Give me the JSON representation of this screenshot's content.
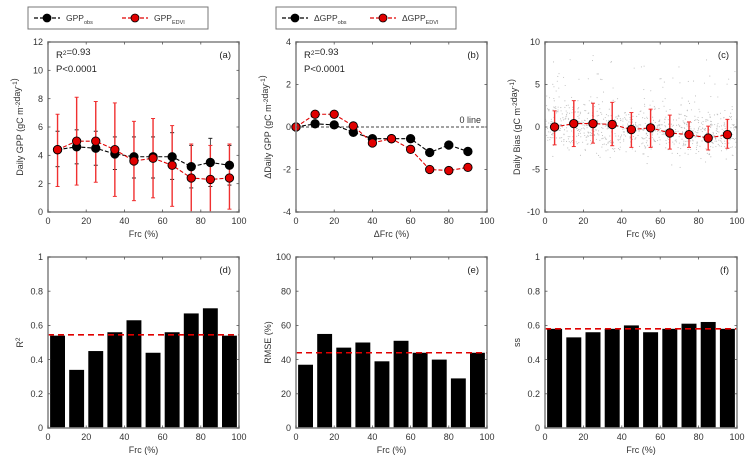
{
  "figure": {
    "colors": {
      "obs": "#000000",
      "model": "#e00000",
      "errorbar": "#f03030",
      "axis": "#888888",
      "scatter": "#bdbdbd",
      "refline_model": "#e00000",
      "zero_line": "#444444"
    }
  },
  "chart_data": [
    {
      "panel": "a",
      "type": "line",
      "panel_label": "(a)",
      "legend": {
        "placement": "top",
        "entries": [
          {
            "name": "GPP",
            "sub": "obs",
            "color": "#000000"
          },
          {
            "name": "GPP",
            "sub": "EDVI",
            "color": "#e00000"
          }
        ]
      },
      "annotations": [
        "R²=0.93",
        "P<0.0001"
      ],
      "xlabel": "Frc (%)",
      "ylabel": "Daily GPP (gC m⁻²day⁻¹)",
      "xlim": [
        0,
        100
      ],
      "ylim": [
        0,
        12
      ],
      "xticks": [
        0,
        20,
        40,
        60,
        80,
        100
      ],
      "yticks": [
        0,
        2,
        4,
        6,
        8,
        10,
        12
      ],
      "x": [
        5,
        15,
        25,
        35,
        45,
        55,
        65,
        75,
        85,
        95
      ],
      "series": [
        {
          "name": "GPP obs",
          "values": [
            4.4,
            4.6,
            4.5,
            4.1,
            3.9,
            3.9,
            3.9,
            3.2,
            3.5,
            3.3
          ],
          "err_low": [
            3.2,
            3.4,
            3.3,
            3.0,
            2.4,
            2.4,
            2.3,
            1.7,
            1.8,
            1.9
          ],
          "err_high": [
            5.7,
            5.8,
            5.7,
            5.3,
            5.3,
            5.3,
            5.6,
            4.7,
            5.2,
            4.7
          ]
        },
        {
          "name": "GPP EDVI",
          "values": [
            4.4,
            5.0,
            5.0,
            4.4,
            3.6,
            3.8,
            3.3,
            2.4,
            2.3,
            2.4
          ],
          "err_low": [
            1.8,
            1.9,
            2.1,
            1.1,
            0.8,
            1.0,
            0.4,
            0.0,
            0.0,
            0.2
          ],
          "err_high": [
            6.9,
            8.1,
            7.8,
            7.7,
            6.4,
            6.6,
            6.1,
            4.8,
            4.7,
            4.8
          ]
        }
      ]
    },
    {
      "panel": "b",
      "type": "line",
      "panel_label": "(b)",
      "legend": {
        "placement": "top",
        "entries": [
          {
            "name": "ΔGPP",
            "sub": "obs",
            "color": "#000000"
          },
          {
            "name": "ΔGPP",
            "sub": "EDVI",
            "color": "#e00000"
          }
        ]
      },
      "annotations": [
        "R²=0.93",
        "P<0.0001"
      ],
      "reference_line": {
        "y": 0,
        "label": "0 line",
        "style": "dashed"
      },
      "xlabel": "ΔFrc (%)",
      "ylabel": "ΔDaily GPP (gC m⁻²day⁻¹)",
      "xlim": [
        0,
        100
      ],
      "ylim": [
        -4,
        4
      ],
      "xticks": [
        0,
        20,
        40,
        60,
        80,
        100
      ],
      "yticks": [
        -4,
        -2,
        0,
        2,
        4
      ],
      "x": [
        0,
        10,
        20,
        30,
        40,
        50,
        60,
        70,
        80,
        90
      ],
      "series": [
        {
          "name": "ΔGPP obs",
          "values": [
            0,
            0.15,
            0.1,
            -0.25,
            -0.55,
            -0.55,
            -0.55,
            -1.2,
            -0.85,
            -1.15
          ]
        },
        {
          "name": "ΔGPP EDVI",
          "values": [
            0,
            0.6,
            0.6,
            0.05,
            -0.75,
            -0.55,
            -1.05,
            -2.0,
            -2.05,
            -1.9
          ]
        }
      ]
    },
    {
      "panel": "c",
      "type": "scatter",
      "panel_label": "(c)",
      "xlabel": "Frc (%)",
      "ylabel": "Daily Bias (gC m⁻²day⁻¹)",
      "xlim": [
        0,
        100
      ],
      "ylim": [
        -10,
        10
      ],
      "xticks": [
        0,
        20,
        40,
        60,
        80,
        100
      ],
      "yticks": [
        -10,
        -5,
        0,
        5,
        10
      ],
      "x": [
        5,
        15,
        25,
        35,
        45,
        55,
        65,
        75,
        85,
        95
      ],
      "series": [
        {
          "name": "Mean bias",
          "values": [
            0.0,
            0.4,
            0.4,
            0.3,
            -0.3,
            -0.1,
            -0.7,
            -0.9,
            -1.3,
            -0.9
          ],
          "err_low": [
            -2.1,
            -2.3,
            -1.9,
            -2.2,
            -2.4,
            -2.4,
            -2.6,
            -2.4,
            -2.7,
            -2.5
          ],
          "err_high": [
            1.9,
            3.1,
            2.8,
            2.9,
            1.7,
            2.1,
            1.4,
            0.6,
            0.1,
            0.9
          ]
        }
      ],
      "scatter_note": "dense grey point cloud of individual daily bias values, mostly between -3 and 5"
    },
    {
      "panel": "d",
      "type": "bar",
      "panel_label": "(d)",
      "xlabel": "Frc (%)",
      "ylabel": "R²",
      "xlim": [
        0,
        100
      ],
      "ylim": [
        0,
        1
      ],
      "xticks": [
        0,
        20,
        40,
        60,
        80,
        100
      ],
      "yticks": [
        0,
        0.2,
        0.4,
        0.6,
        0.8,
        1
      ],
      "x": [
        5,
        15,
        25,
        35,
        45,
        55,
        65,
        75,
        85,
        95
      ],
      "values": [
        0.54,
        0.34,
        0.45,
        0.56,
        0.63,
        0.44,
        0.56,
        0.67,
        0.7,
        0.54
      ],
      "reference_line": {
        "y": 0.545,
        "style": "dashed",
        "color": "#e00000"
      }
    },
    {
      "panel": "e",
      "type": "bar",
      "panel_label": "(e)",
      "xlabel": "Frc (%)",
      "ylabel": "RMSE (%)",
      "xlim": [
        0,
        100
      ],
      "ylim": [
        0,
        100
      ],
      "xticks": [
        0,
        20,
        40,
        60,
        80,
        100
      ],
      "yticks": [
        0,
        20,
        40,
        60,
        80,
        100
      ],
      "x": [
        5,
        15,
        25,
        35,
        45,
        55,
        65,
        75,
        85,
        95
      ],
      "values": [
        37,
        55,
        47,
        50,
        39,
        51,
        44,
        40,
        29,
        44
      ],
      "reference_line": {
        "y": 44,
        "style": "dashed",
        "color": "#e00000"
      }
    },
    {
      "panel": "f",
      "type": "bar",
      "panel_label": "(f)",
      "xlabel": "Frc (%)",
      "ylabel": "ss",
      "xlim": [
        0,
        100
      ],
      "ylim": [
        0,
        1
      ],
      "xticks": [
        0,
        20,
        40,
        60,
        80,
        100
      ],
      "yticks": [
        0,
        0.2,
        0.4,
        0.6,
        0.8,
        1
      ],
      "x": [
        5,
        15,
        25,
        35,
        45,
        55,
        65,
        75,
        85,
        95
      ],
      "values": [
        0.58,
        0.53,
        0.56,
        0.58,
        0.6,
        0.56,
        0.58,
        0.61,
        0.62,
        0.58
      ],
      "reference_line": {
        "y": 0.58,
        "style": "dashed",
        "color": "#e00000"
      }
    }
  ]
}
